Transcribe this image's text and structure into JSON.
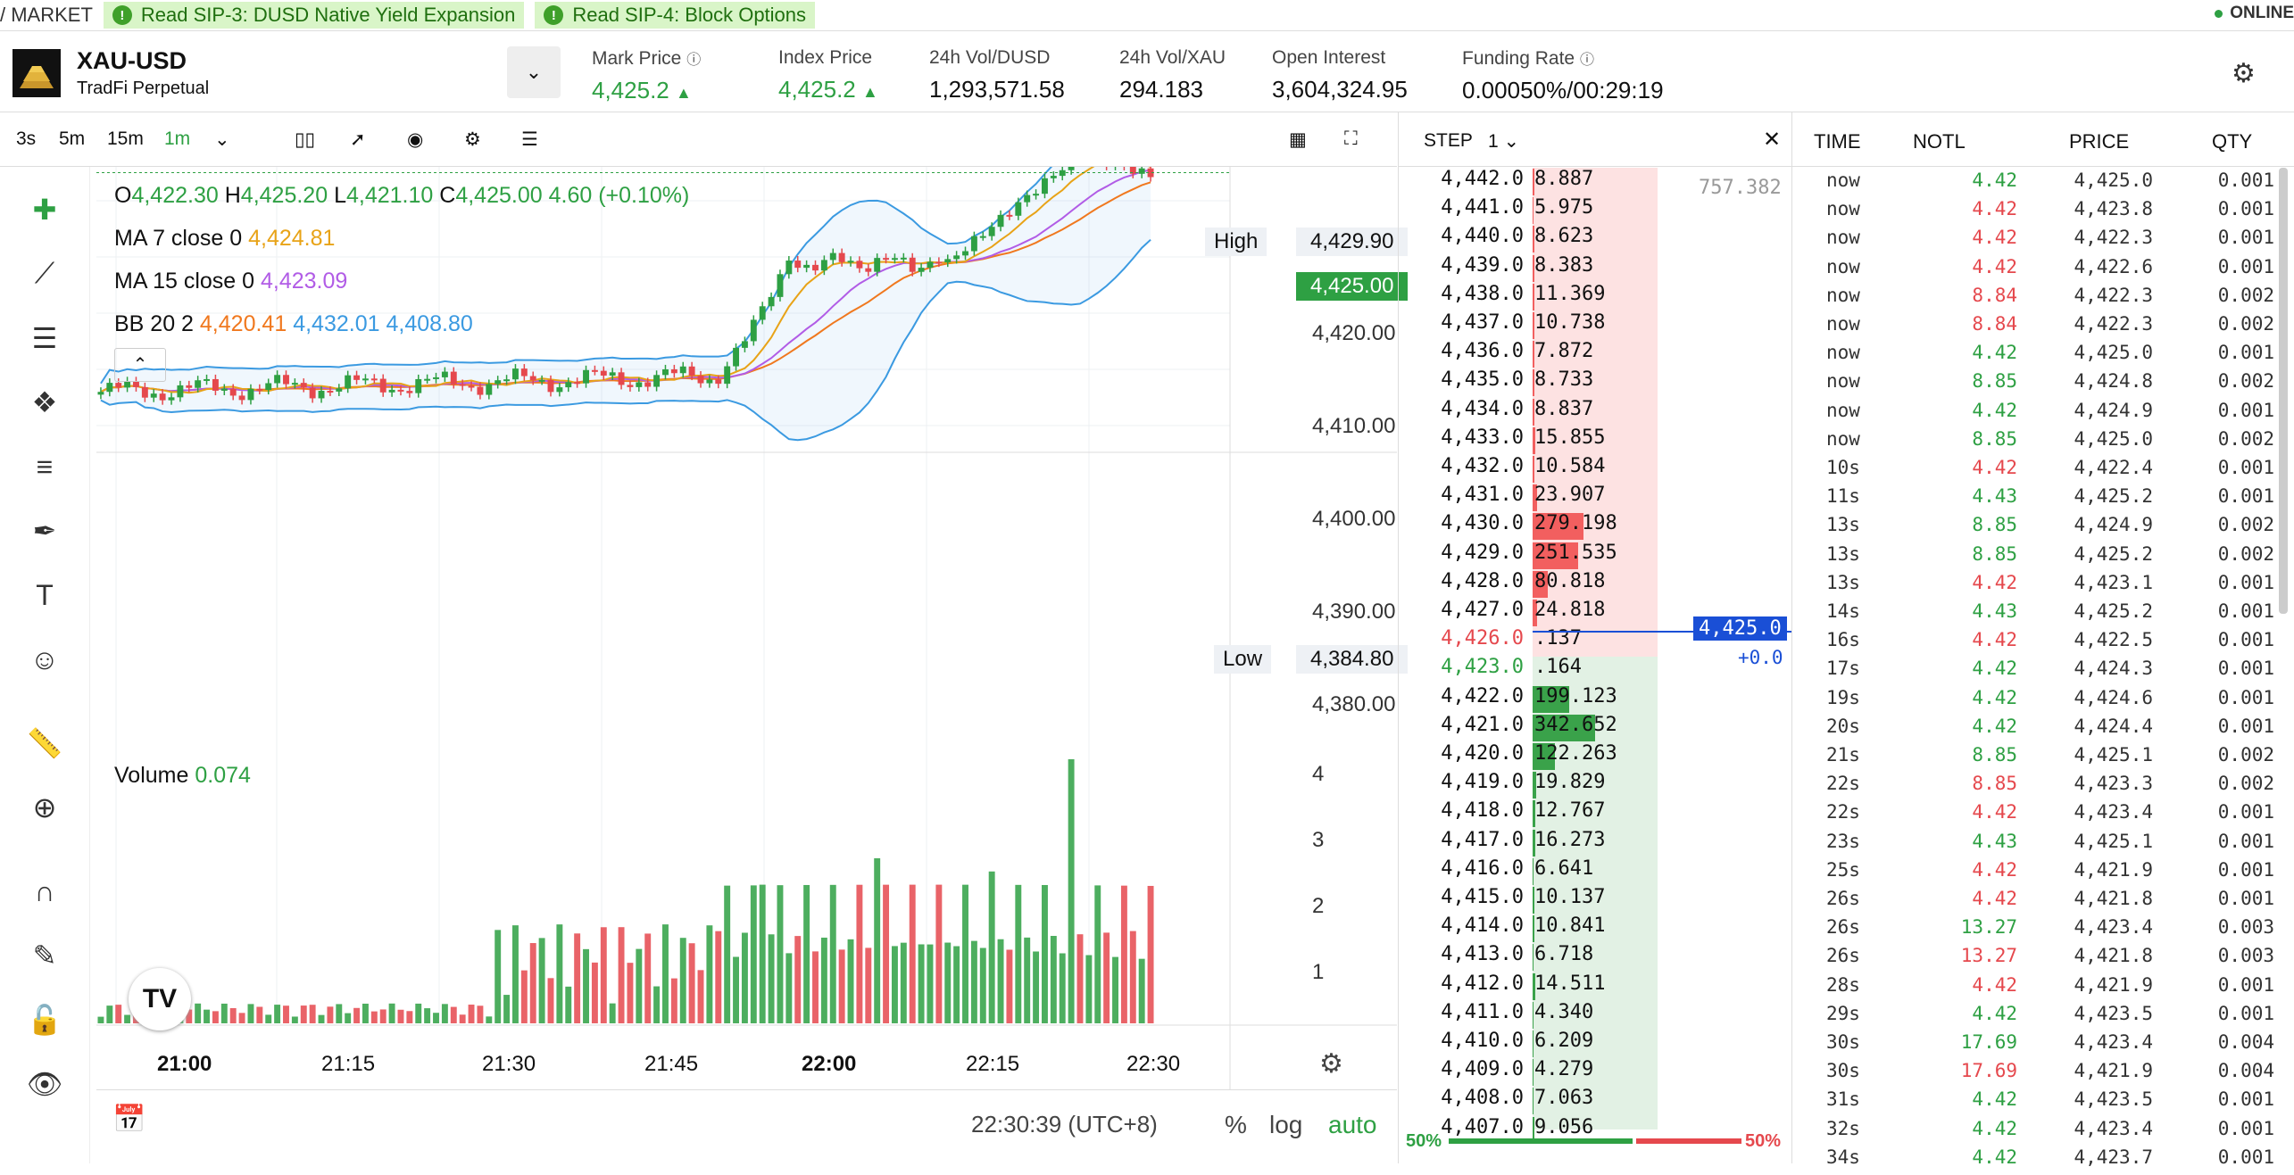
{
  "ticker": {
    "market": "/ MARKET",
    "items": [
      "Read SIP-3: DUSD Native Yield Expansion",
      "Read SIP-4: Block Options"
    ],
    "status": "ONLINE"
  },
  "header": {
    "symbol": "XAU-USD",
    "subtitle": "TradFi Perpetual",
    "stats": [
      {
        "label": "Mark Price",
        "value": "4,425.2"
      },
      {
        "label": "Index Price",
        "value": "4,425.2"
      },
      {
        "label": "24h Vol/DUSD",
        "value": "1,293,571.58"
      },
      {
        "label": "24h Vol/XAU",
        "value": "294.183"
      },
      {
        "label": "Open Interest",
        "value": "3,604,324.95"
      },
      {
        "label": "Funding Rate",
        "value": "0.00050%/00:29:19"
      }
    ]
  },
  "toolbar": {
    "intervals": [
      "3s",
      "5m",
      "15m",
      "1m"
    ],
    "active": "1m"
  },
  "legend": {
    "o_label": "O",
    "o": "4,422.30",
    "h_label": "H",
    "h": "4,425.20",
    "l_label": "L",
    "l": "4,421.10",
    "c_label": "C",
    "c": "4,425.00",
    "chg": "4.60 (+0.10%)",
    "ma7_label": "MA 7 close 0",
    "ma7": "4,424.81",
    "ma15_label": "MA 15 close 0",
    "ma15": "4,423.09",
    "bb_label": "BB 20 2",
    "bb_mid": "4,420.41",
    "bb_up": "4,432.01",
    "bb_low": "4,408.80",
    "vol_label": "Volume",
    "vol": "0.074"
  },
  "price_axis": {
    "ticks": [
      "4,420.00",
      "4,410.00",
      "4,400.00",
      "4,390.00",
      "4,380.00"
    ],
    "high_label": "High",
    "high": "4,429.90",
    "low_label": "Low",
    "low": "4,384.80",
    "last": "4,425.00"
  },
  "volume_axis": {
    "ticks": [
      "4",
      "3",
      "2",
      "1"
    ]
  },
  "time_axis": {
    "ticks": [
      "21:00",
      "21:15",
      "21:30",
      "21:45",
      "22:00",
      "22:15",
      "22:30"
    ]
  },
  "footer": {
    "time": "22:30:39 (UTC+8)",
    "pct": "%",
    "log": "log",
    "auto": "auto"
  },
  "orderbook": {
    "step_label": "STEP",
    "step": "1",
    "asks": [
      [
        "4,442.0",
        "8.887"
      ],
      [
        "4,441.0",
        "5.975"
      ],
      [
        "4,440.0",
        "8.623"
      ],
      [
        "4,439.0",
        "8.383"
      ],
      [
        "4,438.0",
        "11.369"
      ],
      [
        "4,437.0",
        "10.738"
      ],
      [
        "4,436.0",
        "7.872"
      ],
      [
        "4,435.0",
        "8.733"
      ],
      [
        "4,434.0",
        "8.837"
      ],
      [
        "4,433.0",
        "15.855"
      ],
      [
        "4,432.0",
        "10.584"
      ],
      [
        "4,431.0",
        "23.907"
      ],
      [
        "4,430.0",
        "279.198"
      ],
      [
        "4,429.0",
        "251.535"
      ],
      [
        "4,428.0",
        "80.818"
      ],
      [
        "4,427.0",
        "24.818"
      ],
      [
        "4,426.0",
        ".137"
      ]
    ],
    "bids": [
      [
        "4,423.0",
        ".164"
      ],
      [
        "4,422.0",
        "199.123"
      ],
      [
        "4,421.0",
        "342.652"
      ],
      [
        "4,420.0",
        "122.263"
      ],
      [
        "4,419.0",
        "19.829"
      ],
      [
        "4,418.0",
        "12.767"
      ],
      [
        "4,417.0",
        "16.273"
      ],
      [
        "4,416.0",
        "6.641"
      ],
      [
        "4,415.0",
        "10.137"
      ],
      [
        "4,414.0",
        "10.841"
      ],
      [
        "4,413.0",
        "6.718"
      ],
      [
        "4,412.0",
        "14.511"
      ],
      [
        "4,411.0",
        "4.340"
      ],
      [
        "4,410.0",
        "6.209"
      ],
      [
        "4,409.0",
        "4.279"
      ],
      [
        "4,408.0",
        "7.063"
      ],
      [
        "4,407.0",
        "9.056"
      ]
    ],
    "tooltip": "757.382",
    "mark": "4,425.0",
    "mark_chg": "+0.0",
    "buy_pct": "50%",
    "sell_pct": "50%"
  },
  "trades": {
    "headers": [
      "TIME",
      "NOTL",
      "PRICE",
      "QTY"
    ],
    "rows": [
      [
        "now",
        "4.42",
        "4,425.0",
        "0.001",
        "g"
      ],
      [
        "now",
        "4.42",
        "4,423.8",
        "0.001",
        "r"
      ],
      [
        "now",
        "4.42",
        "4,422.3",
        "0.001",
        "r"
      ],
      [
        "now",
        "4.42",
        "4,422.6",
        "0.001",
        "r"
      ],
      [
        "now",
        "8.84",
        "4,422.3",
        "0.002",
        "r"
      ],
      [
        "now",
        "8.84",
        "4,422.3",
        "0.002",
        "r"
      ],
      [
        "now",
        "4.42",
        "4,425.0",
        "0.001",
        "g"
      ],
      [
        "now",
        "8.85",
        "4,424.8",
        "0.002",
        "g"
      ],
      [
        "now",
        "4.42",
        "4,424.9",
        "0.001",
        "g"
      ],
      [
        "now",
        "8.85",
        "4,425.0",
        "0.002",
        "g"
      ],
      [
        "10s",
        "4.42",
        "4,422.4",
        "0.001",
        "r"
      ],
      [
        "11s",
        "4.43",
        "4,425.2",
        "0.001",
        "g"
      ],
      [
        "13s",
        "8.85",
        "4,424.9",
        "0.002",
        "g"
      ],
      [
        "13s",
        "8.85",
        "4,425.2",
        "0.002",
        "g"
      ],
      [
        "13s",
        "4.42",
        "4,423.1",
        "0.001",
        "r"
      ],
      [
        "14s",
        "4.43",
        "4,425.2",
        "0.001",
        "g"
      ],
      [
        "16s",
        "4.42",
        "4,422.5",
        "0.001",
        "r"
      ],
      [
        "17s",
        "4.42",
        "4,424.3",
        "0.001",
        "g"
      ],
      [
        "19s",
        "4.42",
        "4,424.6",
        "0.001",
        "g"
      ],
      [
        "20s",
        "4.42",
        "4,424.4",
        "0.001",
        "g"
      ],
      [
        "21s",
        "8.85",
        "4,425.1",
        "0.002",
        "g"
      ],
      [
        "22s",
        "8.85",
        "4,423.3",
        "0.002",
        "r"
      ],
      [
        "22s",
        "4.42",
        "4,423.4",
        "0.001",
        "r"
      ],
      [
        "23s",
        "4.43",
        "4,425.1",
        "0.001",
        "g"
      ],
      [
        "25s",
        "4.42",
        "4,421.9",
        "0.001",
        "r"
      ],
      [
        "26s",
        "4.42",
        "4,421.8",
        "0.001",
        "r"
      ],
      [
        "26s",
        "13.27",
        "4,423.4",
        "0.003",
        "g"
      ],
      [
        "26s",
        "13.27",
        "4,421.8",
        "0.003",
        "r"
      ],
      [
        "28s",
        "4.42",
        "4,421.9",
        "0.001",
        "r"
      ],
      [
        "29s",
        "4.42",
        "4,423.5",
        "0.001",
        "g"
      ],
      [
        "30s",
        "17.69",
        "4,423.4",
        "0.004",
        "g"
      ],
      [
        "30s",
        "17.69",
        "4,421.9",
        "0.004",
        "r"
      ],
      [
        "31s",
        "4.42",
        "4,423.5",
        "0.001",
        "g"
      ],
      [
        "32s",
        "4.42",
        "4,423.4",
        "0.001",
        "g"
      ],
      [
        "34s",
        "4.42",
        "4,423.7",
        "0.001",
        "g"
      ]
    ]
  },
  "colors": {
    "up": "#2ea043",
    "down": "#e5484d",
    "bb": "#3b9ae1",
    "ma7": "#e8a317",
    "ma15": "#b15ce6",
    "bbmid": "#f0781e"
  }
}
